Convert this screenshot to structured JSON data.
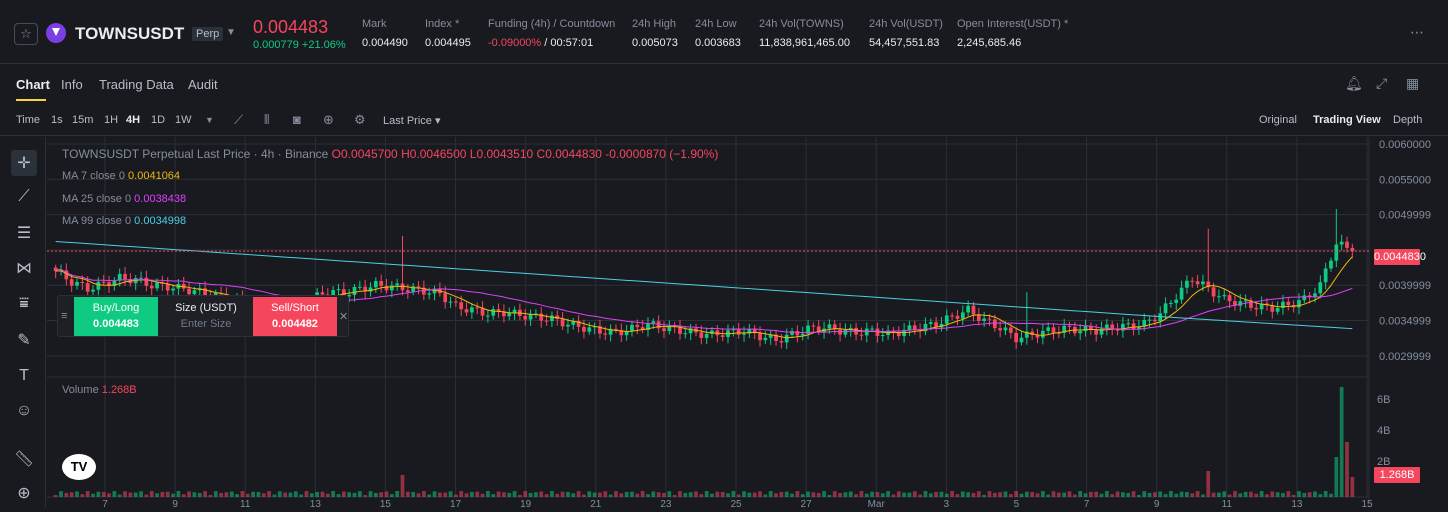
{
  "header": {
    "symbol": "TOWNSUSDT",
    "contract_type": "Perp",
    "last_price": "0.004483",
    "change": "0.000779 +21.06%",
    "stats": [
      {
        "label": "Mark",
        "value": "0.004490"
      },
      {
        "label": "Index *",
        "value": "0.004495"
      },
      {
        "label": "Funding (4h) / Countdown",
        "value_neg": "-0.09000%",
        "value": " / 00:57:01"
      },
      {
        "label": "24h High",
        "value": "0.005073"
      },
      {
        "label": "24h Low",
        "value": "0.003683"
      },
      {
        "label": "24h Vol(TOWNS)",
        "value": "11,838,961,465.00"
      },
      {
        "label": "24h Vol(USDT)",
        "value": "54,457,551.83"
      },
      {
        "label": "Open Interest(USDT) *",
        "value": "2,245,685.46"
      }
    ],
    "more_icon": "more-dots-icon"
  },
  "tabs": [
    "Chart",
    "Info",
    "Trading Data",
    "Audit"
  ],
  "toolbar": {
    "time_label": "Time",
    "intervals": [
      "1s",
      "15m",
      "1H",
      "4H",
      "1D",
      "1W"
    ],
    "active_interval": "4H",
    "price_type": "Last Price",
    "views": [
      "Original",
      "Trading View",
      "Depth"
    ],
    "active_view": "Trading View"
  },
  "legend": {
    "title": "TOWNSUSDT Perpetual Last Price · 4h · Binance",
    "ohlc": "O0.0045700 H0.0046500 L0.0043510 C0.0044830 -0.0000870 (−1.90%)",
    "ma7_label": "MA 7 close 0",
    "ma7_value": "0.0041064",
    "ma25_label": "MA 25 close 0",
    "ma25_value": "0.0038438",
    "ma99_label": "MA 99 close 0",
    "ma99_value": "0.0034998"
  },
  "trade_panel": {
    "buy_label": "Buy/Long",
    "buy_price": "0.004483",
    "size_label": "Size (USDT)",
    "size_placeholder": "Enter Size",
    "sell_label": "Sell/Short",
    "sell_price": "0.004482"
  },
  "price_axis": [
    "0.0060000",
    "0.0055000",
    "0.0049999",
    "0.0044830",
    "0.0039999",
    "0.0034999",
    "0.0029999"
  ],
  "volume": {
    "label": "Volume",
    "value": "1.268B",
    "axis": [
      "6B",
      "4B",
      "2B"
    ],
    "tag": "1.268B"
  },
  "x_axis": [
    "7",
    "9",
    "11",
    "13",
    "15",
    "17",
    "19",
    "21",
    "23",
    "25",
    "27",
    "Mar",
    "3",
    "5",
    "7",
    "9",
    "11",
    "13",
    "15"
  ],
  "colors": {
    "up": "#0ecb81",
    "down": "#f6465d",
    "accent": "#fcd535"
  },
  "chart_data": {
    "type": "candlestick",
    "interval": "4h",
    "ylim": [
      0.0027,
      0.0061
    ],
    "closes": [
      0.0042,
      0.00405,
      0.00395,
      0.00402,
      0.0041,
      0.00408,
      0.004,
      0.00398,
      0.00395,
      0.0039,
      0.00385,
      0.0038,
      0.00372,
      0.00368,
      0.00365,
      0.00368,
      0.0038,
      0.00392,
      0.00388,
      0.00395,
      0.004,
      0.00398,
      0.00395,
      0.00392,
      0.00388,
      0.0037,
      0.00365,
      0.0036,
      0.00362,
      0.00358,
      0.00355,
      0.00352,
      0.00345,
      0.0034,
      0.00335,
      0.00333,
      0.00338,
      0.00345,
      0.0034,
      0.00336,
      0.00332,
      0.0033,
      0.00333,
      0.00335,
      0.00328,
      0.00322,
      0.0033,
      0.00338,
      0.0034,
      0.00336,
      0.00333,
      0.00335,
      0.0033,
      0.00336,
      0.0034,
      0.00345,
      0.00355,
      0.00365,
      0.0035,
      0.0034,
      0.00325,
      0.0033,
      0.00335,
      0.00338,
      0.00337,
      0.00336,
      0.0034,
      0.00342,
      0.00345,
      0.0036,
      0.00385,
      0.0041,
      0.00395,
      0.0038,
      0.00375,
      0.0037,
      0.00368,
      0.00372,
      0.0038,
      0.004,
      0.0046,
      0.00448
    ]
  }
}
